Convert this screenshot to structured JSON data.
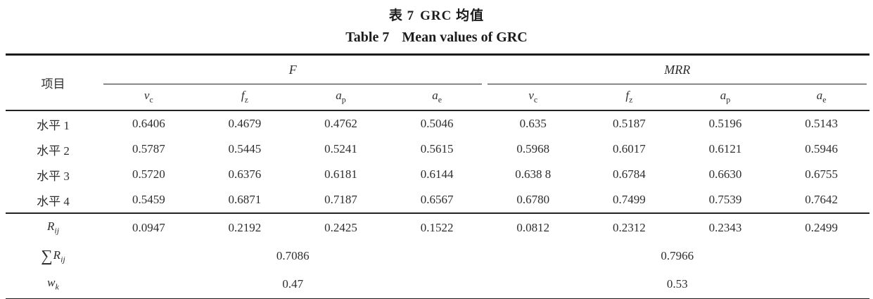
{
  "header": {
    "title_cn_label": "表 7",
    "title_cn_text": "GRC 均值",
    "title_en_label": "Table 7",
    "title_en_text": "Mean values of GRC"
  },
  "table": {
    "item_col_header": "项目",
    "group_headers": [
      "F",
      "MRR"
    ],
    "sub_headers": [
      {
        "base": "v",
        "sub": "c"
      },
      {
        "base": "f",
        "sub": "z"
      },
      {
        "base": "a",
        "sub": "p"
      },
      {
        "base": "a",
        "sub": "e"
      },
      {
        "base": "v",
        "sub": "c"
      },
      {
        "base": "f",
        "sub": "z"
      },
      {
        "base": "a",
        "sub": "p"
      },
      {
        "base": "a",
        "sub": "e"
      }
    ],
    "level_rows": [
      {
        "label": "水平 1",
        "values": [
          "0.6406",
          "0.4679",
          "0.4762",
          "0.5046",
          "0.635",
          "0.5187",
          "0.5196",
          "0.5143"
        ]
      },
      {
        "label": "水平 2",
        "values": [
          "0.5787",
          "0.5445",
          "0.5241",
          "0.5615",
          "0.5968",
          "0.6017",
          "0.6121",
          "0.5946"
        ]
      },
      {
        "label": "水平 3",
        "values": [
          "0.5720",
          "0.6376",
          "0.6181",
          "0.6144",
          "0.638 8",
          "0.6784",
          "0.6630",
          "0.6755"
        ]
      },
      {
        "label": "水平 4",
        "values": [
          "0.5459",
          "0.6871",
          "0.7187",
          "0.6567",
          "0.6780",
          "0.7499",
          "0.7539",
          "0.7642"
        ]
      }
    ],
    "rij_row": {
      "base": "R",
      "sub": "ij",
      "values": [
        "0.0947",
        "0.2192",
        "0.2425",
        "0.1522",
        "0.0812",
        "0.2312",
        "0.2343",
        "0.2499"
      ]
    },
    "sum_row": {
      "sigma": "∑",
      "base": "R",
      "sub": "ij",
      "f_value": "0.7086",
      "mrr_value": "0.7966"
    },
    "wk_row": {
      "base": "w",
      "sub": "k",
      "f_value": "0.47",
      "mrr_value": "0.53"
    }
  }
}
